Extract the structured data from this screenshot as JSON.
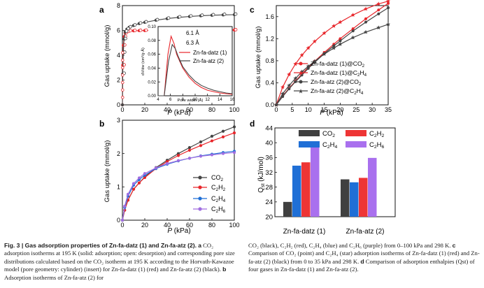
{
  "chart_data": [
    {
      "panel": "a",
      "type": "line",
      "xlabel": "P (kPa)",
      "ylabel": "Gas uptake (mmol/g)",
      "xlim": [
        0,
        100
      ],
      "ylim": [
        0,
        8
      ],
      "xticks": [
        "0",
        "20",
        "40",
        "60",
        "80",
        "100"
      ],
      "yticks": [
        "0",
        "2",
        "4",
        "6",
        "8"
      ],
      "series": [
        {
          "name": "Zn-fa-datz (1) adsorption",
          "color": "#e8262b",
          "x": [
            0,
            0.3,
            0.8,
            1.5,
            2.5,
            4,
            6,
            10,
            15,
            20,
            30,
            40,
            50,
            60,
            70,
            80,
            90,
            100
          ],
          "y": [
            0,
            3.2,
            4.8,
            5.5,
            5.8,
            5.9,
            5.95,
            5.97,
            5.98,
            5.99,
            6.0,
            6.0,
            6.0,
            6.0,
            6.01,
            6.02,
            6.02,
            6.03
          ]
        },
        {
          "name": "Zn-fa-atz (2) adsorption",
          "color": "#444444",
          "x": [
            0,
            0.3,
            0.8,
            1.5,
            2.5,
            4,
            6,
            10,
            15,
            20,
            30,
            40,
            50,
            60,
            70,
            80,
            90,
            100
          ],
          "y": [
            0,
            2.5,
            4.2,
            5.3,
            5.9,
            6.1,
            6.25,
            6.4,
            6.55,
            6.65,
            6.82,
            6.95,
            7.05,
            7.12,
            7.18,
            7.22,
            7.25,
            7.27
          ]
        }
      ],
      "inset": {
        "xlabel": "Pore width (Å)",
        "ylabel": "dV/dw (cm³/g·Å)",
        "xlim": [
          4,
          16
        ],
        "ylim": [
          0,
          0.1
        ],
        "xticks": [
          "4",
          "6",
          "8",
          "10",
          "12",
          "14",
          "16"
        ],
        "yticks": [
          "0.00",
          "0.02",
          "0.04",
          "0.06",
          "0.08",
          "0.10"
        ],
        "annotations": [
          "6.1 Å",
          "6.3 Å"
        ],
        "series": [
          {
            "name": "Zn-fa-datz (1)",
            "color": "#e8262b",
            "x": [
              4,
              5,
              5.6,
              6.1,
              6.6,
              7,
              8,
              9,
              10,
              11,
              12,
              13,
              14,
              15,
              16
            ],
            "y": [
              0,
              0,
              0.06,
              0.086,
              0.075,
              0.06,
              0.04,
              0.027,
              0.018,
              0.012,
              0.008,
              0.006,
              0.004,
              0.003,
              0.002
            ]
          },
          {
            "name": "Zn-fa-atz (2)",
            "color": "#444444",
            "x": [
              4,
              5,
              5.7,
              6.3,
              6.8,
              7.2,
              8,
              9,
              10,
              11,
              12,
              13,
              14,
              15,
              16
            ],
            "y": [
              0,
              0,
              0.05,
              0.074,
              0.068,
              0.058,
              0.042,
              0.03,
              0.021,
              0.015,
              0.011,
              0.008,
              0.006,
              0.004,
              0.003
            ]
          }
        ]
      }
    },
    {
      "panel": "b",
      "type": "line",
      "xlabel": "P (kPa)",
      "ylabel": "Gas uptake (mmol/g)",
      "xlim": [
        0,
        100
      ],
      "ylim": [
        0,
        3
      ],
      "xticks": [
        "0",
        "20",
        "40",
        "60",
        "80",
        "100"
      ],
      "yticks": [
        "0",
        "1",
        "2",
        "3"
      ],
      "legend": [
        "CO2",
        "C2H2",
        "C2H4",
        "C2H6"
      ],
      "series": [
        {
          "name": "CO2",
          "color": "#444444",
          "x": [
            0,
            2,
            5,
            10,
            15,
            20,
            30,
            40,
            50,
            60,
            70,
            80,
            90,
            100
          ],
          "y": [
            0,
            0.3,
            0.6,
            0.93,
            1.12,
            1.3,
            1.58,
            1.8,
            2.0,
            2.18,
            2.35,
            2.52,
            2.67,
            2.8
          ]
        },
        {
          "name": "C2H2",
          "color": "#e8262b",
          "x": [
            0,
            2,
            5,
            10,
            15,
            20,
            30,
            40,
            50,
            60,
            70,
            80,
            90,
            100
          ],
          "y": [
            0,
            0.3,
            0.6,
            0.93,
            1.12,
            1.28,
            1.55,
            1.76,
            1.94,
            2.1,
            2.24,
            2.38,
            2.5,
            2.62
          ]
        },
        {
          "name": "C2H4",
          "color": "#1f6fd6",
          "x": [
            0,
            2,
            5,
            10,
            15,
            20,
            30,
            40,
            50,
            60,
            70,
            80,
            90,
            100
          ],
          "y": [
            0,
            0.38,
            0.72,
            1.05,
            1.22,
            1.35,
            1.55,
            1.68,
            1.78,
            1.86,
            1.93,
            1.98,
            2.03,
            2.07
          ]
        },
        {
          "name": "C2H6",
          "color": "#a06ee0",
          "x": [
            0,
            2,
            5,
            10,
            15,
            20,
            30,
            40,
            50,
            60,
            70,
            80,
            90,
            100
          ],
          "y": [
            0,
            0.42,
            0.78,
            1.1,
            1.27,
            1.4,
            1.57,
            1.7,
            1.79,
            1.86,
            1.92,
            1.96,
            2.0,
            2.03
          ]
        }
      ]
    },
    {
      "panel": "c",
      "type": "line",
      "xlabel": "P (kPa)",
      "ylabel": "Gas uptake (mmol/g)",
      "xlim": [
        0,
        35
      ],
      "ylim": [
        0,
        1.8
      ],
      "xticks": [
        "0",
        "5",
        "10",
        "15",
        "20",
        "25",
        "30",
        "35"
      ],
      "yticks": [
        "0.0",
        "0.4",
        "0.8",
        "1.2",
        "1.6"
      ],
      "legend": [
        "Zn-fa-datz (1)@CO2",
        "Zn-fa-datz (1)@C2H4",
        "Zn-fa-atz (2)@CO2",
        "Zn-fa-atz (2)@C2H4"
      ],
      "series": [
        {
          "name": "Zn-fa-datz (1)@CO2",
          "color": "#e8262b",
          "marker": "circle",
          "x": [
            0,
            2,
            4,
            6,
            8,
            10,
            12,
            15,
            18,
            20,
            24,
            28,
            32,
            35
          ],
          "y": [
            0,
            0.16,
            0.3,
            0.43,
            0.56,
            0.68,
            0.79,
            0.95,
            1.1,
            1.2,
            1.38,
            1.56,
            1.72,
            1.84
          ]
        },
        {
          "name": "Zn-fa-datz (1)@C2H4",
          "color": "#e8262b",
          "marker": "star",
          "x": [
            0,
            2,
            4,
            6,
            8,
            10,
            12,
            15,
            18,
            20,
            24,
            28,
            32,
            35
          ],
          "y": [
            0,
            0.32,
            0.55,
            0.74,
            0.9,
            1.03,
            1.15,
            1.3,
            1.43,
            1.5,
            1.63,
            1.74,
            1.83,
            1.88
          ]
        },
        {
          "name": "Zn-fa-atz (2)@CO2",
          "color": "#444444",
          "marker": "circle",
          "x": [
            0,
            2,
            4,
            6,
            8,
            10,
            12,
            15,
            18,
            20,
            24,
            28,
            32,
            35
          ],
          "y": [
            0,
            0.15,
            0.29,
            0.42,
            0.54,
            0.66,
            0.77,
            0.93,
            1.07,
            1.16,
            1.34,
            1.5,
            1.65,
            1.76
          ]
        },
        {
          "name": "Zn-fa-atz (2)@C2H4",
          "color": "#444444",
          "marker": "star",
          "x": [
            0,
            2,
            4,
            6,
            8,
            10,
            12,
            15,
            18,
            20,
            24,
            28,
            32,
            35
          ],
          "y": [
            0,
            0.2,
            0.35,
            0.48,
            0.6,
            0.7,
            0.79,
            0.92,
            1.03,
            1.1,
            1.22,
            1.32,
            1.4,
            1.46
          ]
        }
      ]
    },
    {
      "panel": "d",
      "type": "bar",
      "xlabel": "",
      "ylabel": "Qst (kJ/mol)",
      "ylim": [
        20,
        44
      ],
      "yticks": [
        "20",
        "24",
        "28",
        "32",
        "36",
        "40",
        "44"
      ],
      "categories": [
        "Zn-fa-datz (1)",
        "Zn-fa-atz (2)"
      ],
      "legend": [
        "CO2",
        "C2H2",
        "C2H4",
        "C2H6"
      ],
      "series": [
        {
          "name": "CO2",
          "color": "#404040",
          "values": [
            24.0,
            30.1
          ]
        },
        {
          "name": "C2H4",
          "color": "#1f6fd6",
          "values": [
            33.8,
            29.3
          ]
        },
        {
          "name": "C2H2",
          "color": "#ee3535",
          "values": [
            34.7,
            30.5
          ]
        },
        {
          "name": "C2H6",
          "color": "#a970ee",
          "values": [
            39.4,
            35.9
          ]
        }
      ]
    }
  ],
  "labels": {
    "panel_a": "a",
    "panel_b": "b",
    "panel_c": "c",
    "panel_d": "d",
    "a_ylabel": "Gas uptake (mmol/g)",
    "a_xlabel_p": "P",
    "a_xlabel_unit": " (kPa)",
    "a_peak1": "6.1 Å",
    "a_peak2": "6.3 Å",
    "a_inset_leg1": "Zn-fa-datz (1)",
    "a_inset_leg2": "Zn-fa-atz (2)",
    "a_inset_ylabel": "dV/dw (cm³/g·Å)",
    "a_inset_xlabel": "Pore width (Å)",
    "b_ylabel": "Gas uptake (mmol/g)",
    "b_xlabel_p": "P",
    "b_xlabel_unit": " (kPa)",
    "c_ylabel": "Gas uptake (mmol/g)",
    "c_xlabel_p": "P",
    "c_xlabel_unit": " (kPa)",
    "c_leg1": "Zn-fa-datz (1)@CO",
    "c_leg1_sub": "2",
    "c_leg2": "Zn-fa-datz (1)@C",
    "c_leg2_sub": "2",
    "c_leg2_rest": "H",
    "c_leg2_sub2": "4",
    "c_leg3": "Zn-fa-atz (2)@CO",
    "c_leg3_sub": "2",
    "c_leg4": "Zn-fa-atz (2)@C",
    "c_leg4_sub": "2",
    "c_leg4_rest": "H",
    "c_leg4_sub2": "4",
    "d_ylabel_q": "Q",
    "d_ylabel_sub": "st",
    "d_ylabel_unit": " (kJ/mol)",
    "d_cat1": "Zn-fa-datz (1)",
    "d_cat2": "Zn-fa-atz (2)",
    "gas_co": "CO",
    "gas_c": "C",
    "gas_h": "H",
    "sub2": "2",
    "sub4": "4",
    "sub6": "6"
  },
  "caption": {
    "fig_label": "Fig. 3 | Gas adsorption properties of Zn-fa-datz (1) and Zn-fa-atz (2).",
    "a_label": "a",
    "left_text": "CO₂ adsorption isotherms at 195 K (solid: adsorption; open: desorption) and corresponding pore size distributions calculated based on the CO₂ isotherm at 195 K according to the Horvath-Kawazoe model (pore geometry: cylinder) (insert) for Zn-fa-datz (1) (red) and Zn-fa-atz (2) (black).",
    "b_label": "b",
    "left_tail": "Adsorption isotherms of Zn-fa-atz (2) for",
    "right_text": "CO₂ (black), C₂H₂ (red), C₂H₄ (blue) and C₂H₆ (purple) from 0–100 kPa and 298 K.",
    "c_label": "c",
    "right_c": "Comparison of CO₂ (point) and C₂H₄ (star) adsorption isotherms of Zn-fa-datz (1) (red) and Zn-fa-atz (2) (black) from 0 to 35 kPa and 298 K.",
    "d_label": "d",
    "right_d": "Comparison of adsorption enthalpies (Qst) of four gases in Zn-fa-datz (1) and Zn-fa-atz (2)."
  }
}
